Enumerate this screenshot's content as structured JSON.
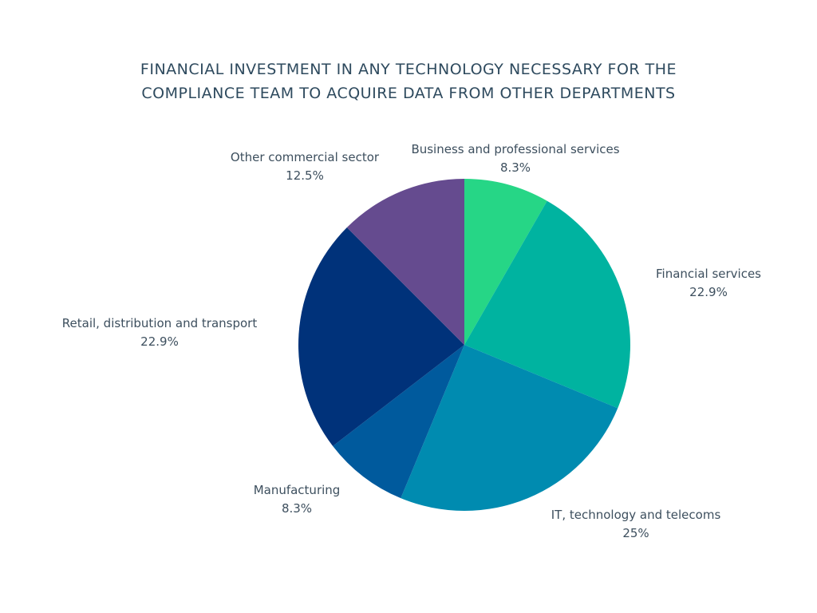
{
  "chart_data": {
    "type": "pie",
    "title_lines": [
      "FINANCIAL INVESTMENT IN ANY TECHNOLOGY NECESSARY FOR THE",
      "COMPLIANCE TEAM TO ACQUIRE DATA FROM OTHER DEPARTMENTS"
    ],
    "start_angle": "12 o'clock",
    "direction": "clockwise",
    "slices": [
      {
        "name": "Business and professional services",
        "value": 8.3,
        "value_label": "8.3%",
        "color": "#26d686"
      },
      {
        "name": "Financial services",
        "value": 22.9,
        "value_label": "22.9%",
        "color": "#00b3a0"
      },
      {
        "name": "IT, technology and telecoms",
        "value": 25,
        "value_label": "25%",
        "color": "#008bb0"
      },
      {
        "name": "Manufacturing",
        "value": 8.3,
        "value_label": "8.3%",
        "color": "#005a9d"
      },
      {
        "name": "Retail, distribution and transport",
        "value": 22.9,
        "value_label": "22.9%",
        "color": "#00327a"
      },
      {
        "name": "Other commercial sector",
        "value": 12.5,
        "value_label": "12.5%",
        "color": "#654b8f"
      }
    ]
  }
}
